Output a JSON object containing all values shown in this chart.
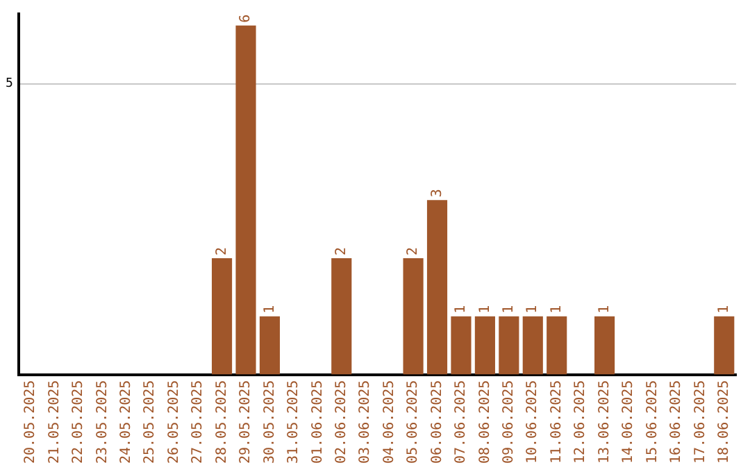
{
  "chart_data": {
    "type": "bar",
    "categories": [
      "20.05.2025",
      "21.05.2025",
      "22.05.2025",
      "23.05.2025",
      "24.05.2025",
      "25.05.2025",
      "26.05.2025",
      "27.05.2025",
      "28.05.2025",
      "29.05.2025",
      "30.05.2025",
      "31.05.2025",
      "01.06.2025",
      "02.06.2025",
      "03.06.2025",
      "04.06.2025",
      "05.06.2025",
      "06.06.2025",
      "07.06.2025",
      "08.06.2025",
      "09.06.2025",
      "10.06.2025",
      "11.06.2025",
      "12.06.2025",
      "13.06.2025",
      "14.06.2025",
      "15.06.2025",
      "16.06.2025",
      "17.06.2025",
      "18.06.2025"
    ],
    "values": [
      0,
      0,
      0,
      0,
      0,
      0,
      0,
      0,
      2,
      6,
      1,
      0,
      0,
      2,
      0,
      0,
      2,
      3,
      1,
      1,
      1,
      1,
      1,
      0,
      1,
      0,
      0,
      0,
      0,
      1
    ],
    "value_labels": [
      null,
      null,
      null,
      null,
      null,
      null,
      null,
      null,
      "2",
      "6",
      "1",
      null,
      null,
      "2",
      null,
      null,
      "2",
      "3",
      "1",
      "1",
      "1",
      "1",
      "1",
      null,
      "1",
      null,
      null,
      null,
      null,
      "1"
    ],
    "color": "#a0562a",
    "ylim": [
      0,
      6.2
    ],
    "yticks": [
      5
    ],
    "grid": "y",
    "legend": false
  }
}
